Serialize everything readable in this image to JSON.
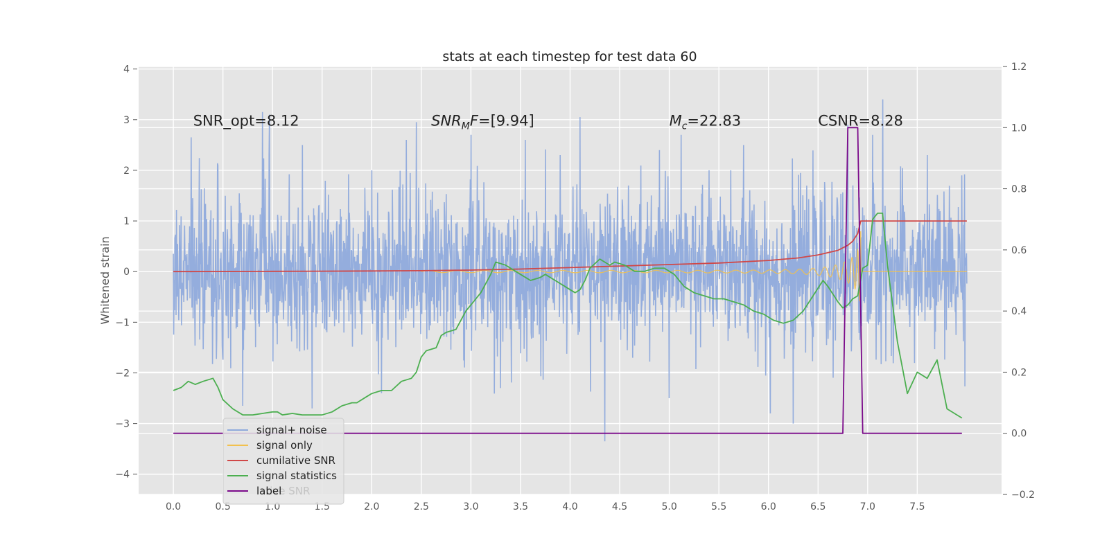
{
  "chart_data": {
    "type": "line",
    "title": "stats at each timestep for test data 60",
    "ylabel": "Whitened strain",
    "y2label": "",
    "xlim": [
      -0.35,
      8.35
    ],
    "ylim": [
      -4.4,
      4.05
    ],
    "y2lim": [
      -0.2,
      1.2
    ],
    "grid": true,
    "x_ticks": [
      0.0,
      0.5,
      1.0,
      1.5,
      2.0,
      2.5,
      3.0,
      3.5,
      4.0,
      4.5,
      5.0,
      5.5,
      6.0,
      6.5,
      7.0,
      7.5
    ],
    "x_tick_labels": [
      "0.0",
      "0.5",
      "1.0",
      "1.5",
      "2.0",
      "2.5",
      "3.0",
      "3.5",
      "4.0",
      "4.5",
      "5.0",
      "5.5",
      "6.0",
      "6.5",
      "7.0",
      "7.5"
    ],
    "y_ticks": [
      -4,
      -3,
      -2,
      -1,
      0,
      1,
      2,
      3,
      4
    ],
    "y_tick_labels": [
      "−4",
      "−3",
      "−2",
      "−1",
      "0",
      "1",
      "2",
      "3",
      "4"
    ],
    "y2_ticks": [
      -0.2,
      0.0,
      0.2,
      0.4,
      0.6,
      0.8,
      1.0,
      1.2
    ],
    "y2_tick_labels": [
      "−0.2",
      "0.0",
      "0.2",
      "0.4",
      "0.6",
      "0.8",
      "1.0",
      "1.2"
    ],
    "annotations": [
      {
        "id": "snr-opt",
        "text": "SNR_opt=8.12",
        "x": 0.2,
        "y": 2.88
      },
      {
        "id": "snr-mf",
        "text": "SNRMF=[9.94]",
        "x": 2.6,
        "y": 2.88,
        "math": {
          "base": "SNR",
          "sub": "M",
          "rest": "F=[9.94]"
        }
      },
      {
        "id": "mc",
        "text": "Mc=22.83",
        "x": 5.0,
        "y": 2.88,
        "math": {
          "base": "M",
          "sub": "c",
          "rest": "=22.83"
        }
      },
      {
        "id": "csnr",
        "text": "CSNR=8.28",
        "x": 6.5,
        "y": 2.88
      }
    ],
    "legend": {
      "placement": "lower-left",
      "entries": [
        {
          "label": "signal+ noise",
          "color": "#8faadc"
        },
        {
          "label": "signal only",
          "color": "#f2c14e"
        },
        {
          "label": "cumilative SNR",
          "color": "#d04848"
        },
        {
          "label": "signal statistics",
          "color": "#4caf50"
        },
        {
          "label": "label",
          "color": "#7b0a8a"
        }
      ],
      "ghost_text": "lative SNR"
    },
    "series": [
      {
        "name": "signal+ noise",
        "axis": "left",
        "style": "noise",
        "color": "#8faadc",
        "x_range": [
          0.0,
          8.0
        ],
        "spread": 0.75,
        "peaks": [
          [
            0.18,
            2.65
          ],
          [
            0.45,
            2.1
          ],
          [
            0.9,
            3.15
          ],
          [
            0.97,
            3.1
          ],
          [
            1.3,
            2.5
          ],
          [
            2.35,
            2.6
          ],
          [
            2.45,
            2.95
          ],
          [
            3.55,
            2.6
          ],
          [
            4.1,
            3.05
          ],
          [
            4.35,
            -3.35
          ],
          [
            4.9,
            2.4
          ],
          [
            5.12,
            2.7
          ],
          [
            5.62,
            2.0
          ],
          [
            5.75,
            2.5
          ],
          [
            6.02,
            -2.8
          ],
          [
            6.25,
            -3.0
          ],
          [
            6.8,
            2.9
          ],
          [
            7.15,
            3.7
          ],
          [
            7.05,
            2.7
          ],
          [
            0.7,
            -2.65
          ],
          [
            1.4,
            -2.7
          ],
          [
            2.1,
            -2.4
          ],
          [
            3.3,
            -2.3
          ],
          [
            5.0,
            -2.5
          ],
          [
            7.6,
            2.3
          ],
          [
            7.95,
            1.9
          ],
          [
            2.0,
            2.0
          ],
          [
            3.0,
            2.7
          ],
          [
            3.9,
            2.3
          ],
          [
            5.4,
            2.0
          ]
        ]
      },
      {
        "name": "signal only",
        "axis": "left",
        "style": "chirp",
        "color": "#f2c14e",
        "t_coalesce": 6.93,
        "start": 2.5,
        "amp_start": 0.02,
        "amp_peak": 1.3
      },
      {
        "name": "cumilative SNR",
        "axis": "left",
        "color": "#d04848",
        "x": [
          0.0,
          0.5,
          1.0,
          1.5,
          2.0,
          2.5,
          3.0,
          3.5,
          4.0,
          4.5,
          5.0,
          5.5,
          6.0,
          6.3,
          6.5,
          6.7,
          6.8,
          6.85,
          6.9,
          6.93,
          7.0,
          7.5,
          8.0
        ],
        "y": [
          0.0,
          0.002,
          0.005,
          0.008,
          0.012,
          0.018,
          0.03,
          0.05,
          0.08,
          0.11,
          0.14,
          0.17,
          0.22,
          0.27,
          0.33,
          0.42,
          0.52,
          0.6,
          0.75,
          1.0,
          1.0,
          1.0,
          1.0
        ]
      },
      {
        "name": "signal statistics",
        "axis": "right",
        "color": "#4caf50",
        "x": [
          0.0,
          0.08,
          0.15,
          0.22,
          0.3,
          0.4,
          0.45,
          0.5,
          0.6,
          0.7,
          0.8,
          0.9,
          1.0,
          1.05,
          1.1,
          1.2,
          1.3,
          1.5,
          1.6,
          1.7,
          1.8,
          1.85,
          1.95,
          2.0,
          2.1,
          2.2,
          2.3,
          2.4,
          2.45,
          2.5,
          2.55,
          2.65,
          2.7,
          2.75,
          2.85,
          2.95,
          3.0,
          3.1,
          3.2,
          3.25,
          3.35,
          3.4,
          3.5,
          3.6,
          3.7,
          3.75,
          3.85,
          3.95,
          4.05,
          4.1,
          4.15,
          4.2,
          4.3,
          4.4,
          4.45,
          4.55,
          4.65,
          4.75,
          4.85,
          4.95,
          5.05,
          5.15,
          5.25,
          5.35,
          5.45,
          5.55,
          5.65,
          5.75,
          5.85,
          5.95,
          6.05,
          6.15,
          6.25,
          6.35,
          6.45,
          6.55,
          6.6,
          6.7,
          6.75,
          6.8,
          6.85,
          6.9,
          6.95,
          7.0,
          7.05,
          7.1,
          7.15,
          7.2,
          7.3,
          7.4,
          7.5,
          7.6,
          7.7,
          7.8,
          7.95
        ],
        "y": [
          0.14,
          0.15,
          0.17,
          0.16,
          0.17,
          0.18,
          0.15,
          0.11,
          0.08,
          0.06,
          0.06,
          0.065,
          0.07,
          0.07,
          0.06,
          0.065,
          0.06,
          0.06,
          0.07,
          0.09,
          0.1,
          0.1,
          0.12,
          0.13,
          0.14,
          0.14,
          0.17,
          0.18,
          0.2,
          0.25,
          0.27,
          0.28,
          0.32,
          0.33,
          0.34,
          0.4,
          0.42,
          0.46,
          0.52,
          0.56,
          0.55,
          0.54,
          0.52,
          0.5,
          0.51,
          0.52,
          0.5,
          0.48,
          0.46,
          0.47,
          0.5,
          0.54,
          0.57,
          0.55,
          0.56,
          0.55,
          0.53,
          0.53,
          0.54,
          0.54,
          0.52,
          0.48,
          0.46,
          0.45,
          0.44,
          0.44,
          0.43,
          0.42,
          0.4,
          0.39,
          0.37,
          0.36,
          0.37,
          0.4,
          0.45,
          0.5,
          0.48,
          0.43,
          0.41,
          0.42,
          0.44,
          0.45,
          0.54,
          0.55,
          0.7,
          0.72,
          0.72,
          0.55,
          0.3,
          0.13,
          0.2,
          0.18,
          0.24,
          0.08,
          0.05
        ]
      },
      {
        "name": "label",
        "axis": "right",
        "color": "#7b0a8a",
        "x": [
          0.0,
          6.75,
          6.8,
          6.9,
          6.95,
          7.95
        ],
        "y": [
          0.0,
          0.0,
          1.0,
          1.0,
          0.0,
          0.0
        ]
      }
    ]
  }
}
